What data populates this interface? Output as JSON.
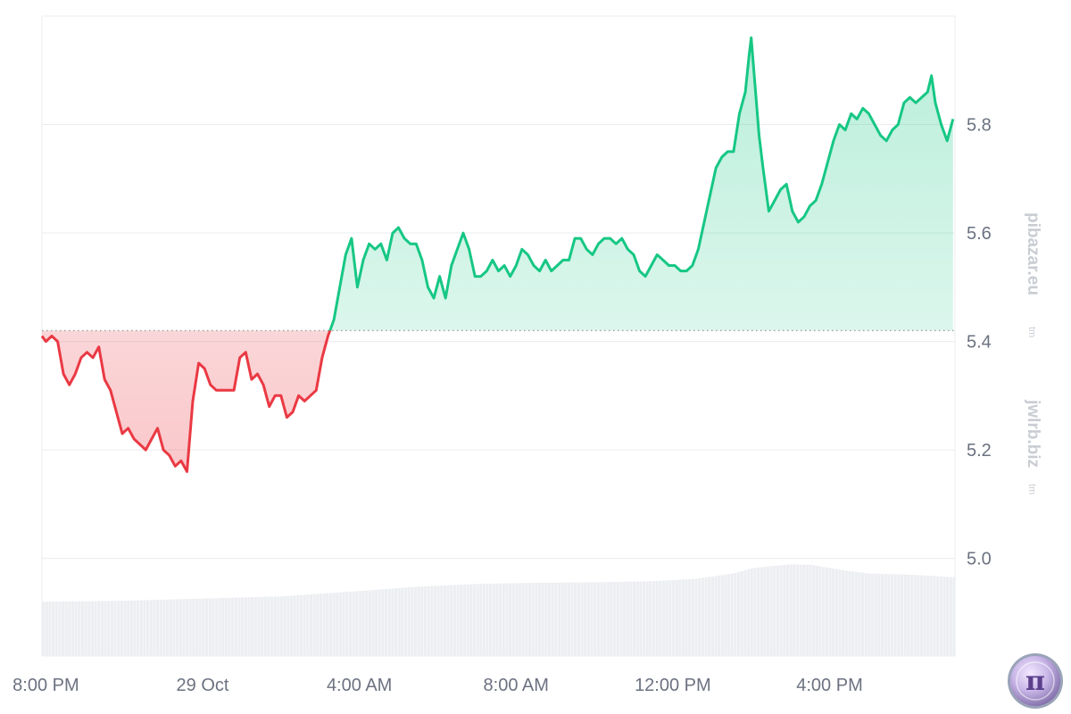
{
  "chart_data": {
    "type": "area",
    "baseline": 5.42,
    "ylim": [
      4.82,
      6.0
    ],
    "yticks": [
      5.0,
      5.2,
      5.4,
      5.6,
      5.8
    ],
    "ytick_labels": [
      "5.0",
      "5.2",
      "5.4",
      "5.6",
      "5.8"
    ],
    "xticks": [
      {
        "label": "8:00 PM",
        "t": 0.0
      },
      {
        "label": "29 Oct",
        "t": 4.0
      },
      {
        "label": "4:00 AM",
        "t": 8.0
      },
      {
        "label": "8:00 AM",
        "t": 12.0
      },
      {
        "label": "12:00 PM",
        "t": 16.0
      },
      {
        "label": "4:00 PM",
        "t": 20.0
      }
    ],
    "xlim": [
      -0.1,
      23.2
    ],
    "grid": true,
    "colors": {
      "up": "#16c784",
      "down": "#ea3943",
      "up_fill": "rgba(22,199,132,0.20)",
      "down_fill": "rgba(234,57,67,0.22)",
      "grid": "#eaecef",
      "baseline": "#9aa0a6",
      "volume": "#eceef1"
    },
    "price_series": [
      [
        -0.1,
        5.41
      ],
      [
        0.0,
        5.4
      ],
      [
        0.15,
        5.41
      ],
      [
        0.3,
        5.4
      ],
      [
        0.45,
        5.34
      ],
      [
        0.6,
        5.32
      ],
      [
        0.75,
        5.34
      ],
      [
        0.9,
        5.37
      ],
      [
        1.05,
        5.38
      ],
      [
        1.2,
        5.37
      ],
      [
        1.35,
        5.39
      ],
      [
        1.5,
        5.33
      ],
      [
        1.65,
        5.31
      ],
      [
        1.8,
        5.27
      ],
      [
        1.95,
        5.23
      ],
      [
        2.1,
        5.24
      ],
      [
        2.25,
        5.22
      ],
      [
        2.4,
        5.21
      ],
      [
        2.55,
        5.2
      ],
      [
        2.7,
        5.22
      ],
      [
        2.85,
        5.24
      ],
      [
        3.0,
        5.2
      ],
      [
        3.15,
        5.19
      ],
      [
        3.3,
        5.17
      ],
      [
        3.45,
        5.18
      ],
      [
        3.6,
        5.16
      ],
      [
        3.75,
        5.29
      ],
      [
        3.9,
        5.36
      ],
      [
        4.05,
        5.35
      ],
      [
        4.2,
        5.32
      ],
      [
        4.35,
        5.31
      ],
      [
        4.5,
        5.31
      ],
      [
        4.65,
        5.31
      ],
      [
        4.8,
        5.31
      ],
      [
        4.95,
        5.37
      ],
      [
        5.1,
        5.38
      ],
      [
        5.25,
        5.33
      ],
      [
        5.4,
        5.34
      ],
      [
        5.55,
        5.32
      ],
      [
        5.7,
        5.28
      ],
      [
        5.85,
        5.3
      ],
      [
        6.0,
        5.3
      ],
      [
        6.15,
        5.26
      ],
      [
        6.3,
        5.27
      ],
      [
        6.45,
        5.3
      ],
      [
        6.6,
        5.29
      ],
      [
        6.75,
        5.3
      ],
      [
        6.9,
        5.31
      ],
      [
        7.05,
        5.37
      ],
      [
        7.2,
        5.41
      ],
      [
        7.35,
        5.44
      ],
      [
        7.5,
        5.5
      ],
      [
        7.65,
        5.56
      ],
      [
        7.8,
        5.59
      ],
      [
        7.95,
        5.5
      ],
      [
        8.1,
        5.55
      ],
      [
        8.25,
        5.58
      ],
      [
        8.4,
        5.57
      ],
      [
        8.55,
        5.58
      ],
      [
        8.7,
        5.55
      ],
      [
        8.85,
        5.6
      ],
      [
        9.0,
        5.61
      ],
      [
        9.15,
        5.59
      ],
      [
        9.3,
        5.58
      ],
      [
        9.45,
        5.58
      ],
      [
        9.6,
        5.55
      ],
      [
        9.75,
        5.5
      ],
      [
        9.9,
        5.48
      ],
      [
        10.05,
        5.52
      ],
      [
        10.2,
        5.48
      ],
      [
        10.35,
        5.54
      ],
      [
        10.5,
        5.57
      ],
      [
        10.65,
        5.6
      ],
      [
        10.8,
        5.57
      ],
      [
        10.95,
        5.52
      ],
      [
        11.1,
        5.52
      ],
      [
        11.25,
        5.53
      ],
      [
        11.4,
        5.55
      ],
      [
        11.55,
        5.53
      ],
      [
        11.7,
        5.54
      ],
      [
        11.85,
        5.52
      ],
      [
        12.0,
        5.54
      ],
      [
        12.15,
        5.57
      ],
      [
        12.3,
        5.56
      ],
      [
        12.45,
        5.54
      ],
      [
        12.6,
        5.53
      ],
      [
        12.75,
        5.55
      ],
      [
        12.9,
        5.53
      ],
      [
        13.05,
        5.54
      ],
      [
        13.2,
        5.55
      ],
      [
        13.35,
        5.55
      ],
      [
        13.5,
        5.59
      ],
      [
        13.65,
        5.59
      ],
      [
        13.8,
        5.57
      ],
      [
        13.95,
        5.56
      ],
      [
        14.1,
        5.58
      ],
      [
        14.25,
        5.59
      ],
      [
        14.4,
        5.59
      ],
      [
        14.55,
        5.58
      ],
      [
        14.7,
        5.59
      ],
      [
        14.85,
        5.57
      ],
      [
        15.0,
        5.56
      ],
      [
        15.15,
        5.53
      ],
      [
        15.3,
        5.52
      ],
      [
        15.45,
        5.54
      ],
      [
        15.6,
        5.56
      ],
      [
        15.75,
        5.55
      ],
      [
        15.9,
        5.54
      ],
      [
        16.05,
        5.54
      ],
      [
        16.2,
        5.53
      ],
      [
        16.35,
        5.53
      ],
      [
        16.5,
        5.54
      ],
      [
        16.65,
        5.57
      ],
      [
        16.8,
        5.62
      ],
      [
        16.95,
        5.67
      ],
      [
        17.1,
        5.72
      ],
      [
        17.25,
        5.74
      ],
      [
        17.4,
        5.75
      ],
      [
        17.55,
        5.75
      ],
      [
        17.7,
        5.82
      ],
      [
        17.85,
        5.86
      ],
      [
        17.95,
        5.93
      ],
      [
        18.0,
        5.96
      ],
      [
        18.1,
        5.87
      ],
      [
        18.2,
        5.78
      ],
      [
        18.3,
        5.72
      ],
      [
        18.45,
        5.64
      ],
      [
        18.6,
        5.66
      ],
      [
        18.75,
        5.68
      ],
      [
        18.9,
        5.69
      ],
      [
        19.05,
        5.64
      ],
      [
        19.2,
        5.62
      ],
      [
        19.35,
        5.63
      ],
      [
        19.5,
        5.65
      ],
      [
        19.65,
        5.66
      ],
      [
        19.8,
        5.69
      ],
      [
        19.95,
        5.73
      ],
      [
        20.1,
        5.77
      ],
      [
        20.25,
        5.8
      ],
      [
        20.4,
        5.79
      ],
      [
        20.55,
        5.82
      ],
      [
        20.7,
        5.81
      ],
      [
        20.85,
        5.83
      ],
      [
        21.0,
        5.82
      ],
      [
        21.15,
        5.8
      ],
      [
        21.3,
        5.78
      ],
      [
        21.45,
        5.77
      ],
      [
        21.6,
        5.79
      ],
      [
        21.75,
        5.8
      ],
      [
        21.9,
        5.84
      ],
      [
        22.05,
        5.85
      ],
      [
        22.2,
        5.84
      ],
      [
        22.35,
        5.85
      ],
      [
        22.5,
        5.86
      ],
      [
        22.6,
        5.89
      ],
      [
        22.7,
        5.84
      ],
      [
        22.85,
        5.8
      ],
      [
        23.0,
        5.77
      ],
      [
        23.15,
        5.81
      ]
    ],
    "volume_series": [
      [
        -0.1,
        4.92
      ],
      [
        2.0,
        4.922
      ],
      [
        4.0,
        4.926
      ],
      [
        6.0,
        4.93
      ],
      [
        7.0,
        4.935
      ],
      [
        8.0,
        4.94
      ],
      [
        9.5,
        4.948
      ],
      [
        11.0,
        4.953
      ],
      [
        12.5,
        4.955
      ],
      [
        14.0,
        4.956
      ],
      [
        15.5,
        4.958
      ],
      [
        16.5,
        4.962
      ],
      [
        17.5,
        4.972
      ],
      [
        18.0,
        4.982
      ],
      [
        18.5,
        4.986
      ],
      [
        19.0,
        4.989
      ],
      [
        19.5,
        4.988
      ],
      [
        20.0,
        4.982
      ],
      [
        20.5,
        4.976
      ],
      [
        21.0,
        4.972
      ],
      [
        22.0,
        4.97
      ],
      [
        23.2,
        4.965
      ]
    ]
  },
  "watermarks": {
    "primary": "pibazar.eu",
    "secondary": "jwlrb.biz",
    "tm": "tm"
  },
  "logo": {
    "symbol": "π",
    "icon": "pi-coin-icon"
  }
}
